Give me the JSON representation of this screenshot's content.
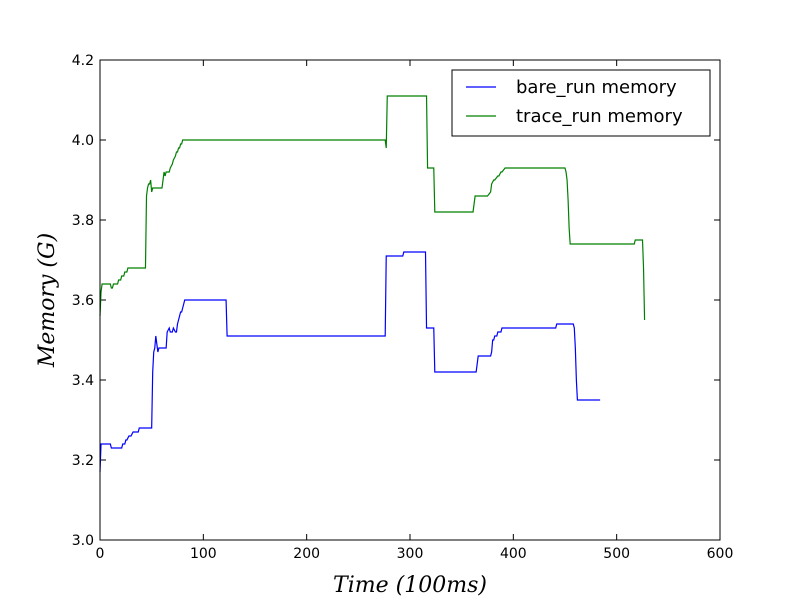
{
  "chart_data": {
    "type": "line",
    "title": "",
    "xlabel": "$Time\\ (100ms)$",
    "ylabel": "$Memory\\ (G)$",
    "xlim": [
      0,
      600
    ],
    "ylim": [
      3.0,
      4.2
    ],
    "xticks": [
      0,
      100,
      200,
      300,
      400,
      500,
      600
    ],
    "xtick_labels": [
      "0",
      "100",
      "200",
      "300",
      "400",
      "500",
      "600"
    ],
    "yticks": [
      3.0,
      3.2,
      3.4,
      3.6,
      3.8,
      4.0,
      4.2
    ],
    "ytick_labels": [
      "3.0",
      "3.2",
      "3.4",
      "3.6",
      "3.8",
      "4.0",
      "4.2"
    ],
    "grid": false,
    "legend": {
      "position": "top-right"
    },
    "series": [
      {
        "name": "bare_run memory",
        "color": "#0000ff",
        "x": [
          0,
          1,
          3,
          10,
          11,
          21,
          22,
          24,
          25,
          26,
          28,
          30,
          32,
          35,
          37,
          38,
          39,
          50,
          51,
          52,
          53,
          54,
          55,
          56,
          57,
          58,
          59,
          64,
          65,
          67,
          68,
          70,
          71,
          73,
          74,
          75,
          76,
          77,
          78,
          79,
          80,
          81,
          82,
          85,
          122,
          123,
          124,
          276,
          277,
          278,
          293,
          294,
          295,
          315,
          316,
          317,
          323,
          324,
          325,
          326,
          327,
          364,
          365,
          366,
          367,
          378,
          379,
          380,
          381,
          382,
          384,
          385,
          388,
          389,
          390,
          392,
          393,
          395,
          396,
          441,
          442,
          443,
          458,
          459,
          460,
          461,
          462,
          463,
          464,
          484
        ],
        "y": [
          3.17,
          3.24,
          3.24,
          3.24,
          3.23,
          3.23,
          3.24,
          3.24,
          3.25,
          3.25,
          3.26,
          3.26,
          3.27,
          3.27,
          3.27,
          3.28,
          3.28,
          3.28,
          3.42,
          3.47,
          3.48,
          3.51,
          3.49,
          3.47,
          3.48,
          3.48,
          3.48,
          3.48,
          3.52,
          3.53,
          3.52,
          3.52,
          3.53,
          3.52,
          3.52,
          3.54,
          3.55,
          3.56,
          3.57,
          3.57,
          3.58,
          3.59,
          3.6,
          3.6,
          3.6,
          3.51,
          3.51,
          3.51,
          3.71,
          3.71,
          3.71,
          3.72,
          3.72,
          3.72,
          3.53,
          3.53,
          3.53,
          3.42,
          3.42,
          3.42,
          3.42,
          3.42,
          3.44,
          3.46,
          3.46,
          3.46,
          3.47,
          3.5,
          3.5,
          3.51,
          3.51,
          3.52,
          3.52,
          3.53,
          3.53,
          3.53,
          3.53,
          3.53,
          3.53,
          3.53,
          3.54,
          3.54,
          3.54,
          3.53,
          3.48,
          3.4,
          3.35,
          3.35,
          3.35,
          3.35
        ]
      },
      {
        "name": "trace_run memory",
        "color": "#008000",
        "x": [
          0,
          1,
          2,
          10,
          11,
          12,
          13,
          17,
          18,
          20,
          21,
          23,
          24,
          26,
          27,
          44,
          45,
          46,
          47,
          48,
          49,
          50,
          51,
          52,
          53,
          54,
          55,
          60,
          61,
          62,
          63,
          64,
          65,
          67,
          68,
          70,
          71,
          73,
          74,
          75,
          76,
          77,
          78,
          79,
          80,
          81,
          82,
          276,
          277,
          278,
          279,
          315,
          316,
          317,
          323,
          324,
          325,
          326,
          327,
          360,
          361,
          362,
          363,
          372,
          373,
          374,
          375,
          378,
          379,
          381,
          382,
          385,
          386,
          388,
          389,
          392,
          393,
          398,
          400,
          447,
          448,
          449,
          450,
          451,
          452,
          453,
          454,
          455,
          456,
          515,
          516,
          517,
          518,
          521,
          522,
          523,
          524,
          525,
          526,
          527
        ],
        "y": [
          3.56,
          3.62,
          3.64,
          3.64,
          3.63,
          3.63,
          3.64,
          3.64,
          3.65,
          3.65,
          3.66,
          3.66,
          3.67,
          3.67,
          3.68,
          3.68,
          3.86,
          3.88,
          3.89,
          3.89,
          3.9,
          3.87,
          3.88,
          3.88,
          3.88,
          3.88,
          3.88,
          3.88,
          3.9,
          3.92,
          3.91,
          3.92,
          3.92,
          3.92,
          3.93,
          3.94,
          3.95,
          3.96,
          3.97,
          3.97,
          3.98,
          3.98,
          3.99,
          3.99,
          4.0,
          4.0,
          4.0,
          4.0,
          3.98,
          4.11,
          4.11,
          4.11,
          4.11,
          3.93,
          3.93,
          3.82,
          3.82,
          3.82,
          3.82,
          3.82,
          3.82,
          3.84,
          3.86,
          3.86,
          3.86,
          3.86,
          3.86,
          3.87,
          3.89,
          3.9,
          3.9,
          3.91,
          3.91,
          3.92,
          3.92,
          3.93,
          3.93,
          3.93,
          3.93,
          3.93,
          3.93,
          3.93,
          3.93,
          3.92,
          3.9,
          3.85,
          3.78,
          3.74,
          3.74,
          3.74,
          3.74,
          3.74,
          3.75,
          3.75,
          3.75,
          3.75,
          3.75,
          3.75,
          3.68,
          3.55
        ]
      }
    ]
  }
}
